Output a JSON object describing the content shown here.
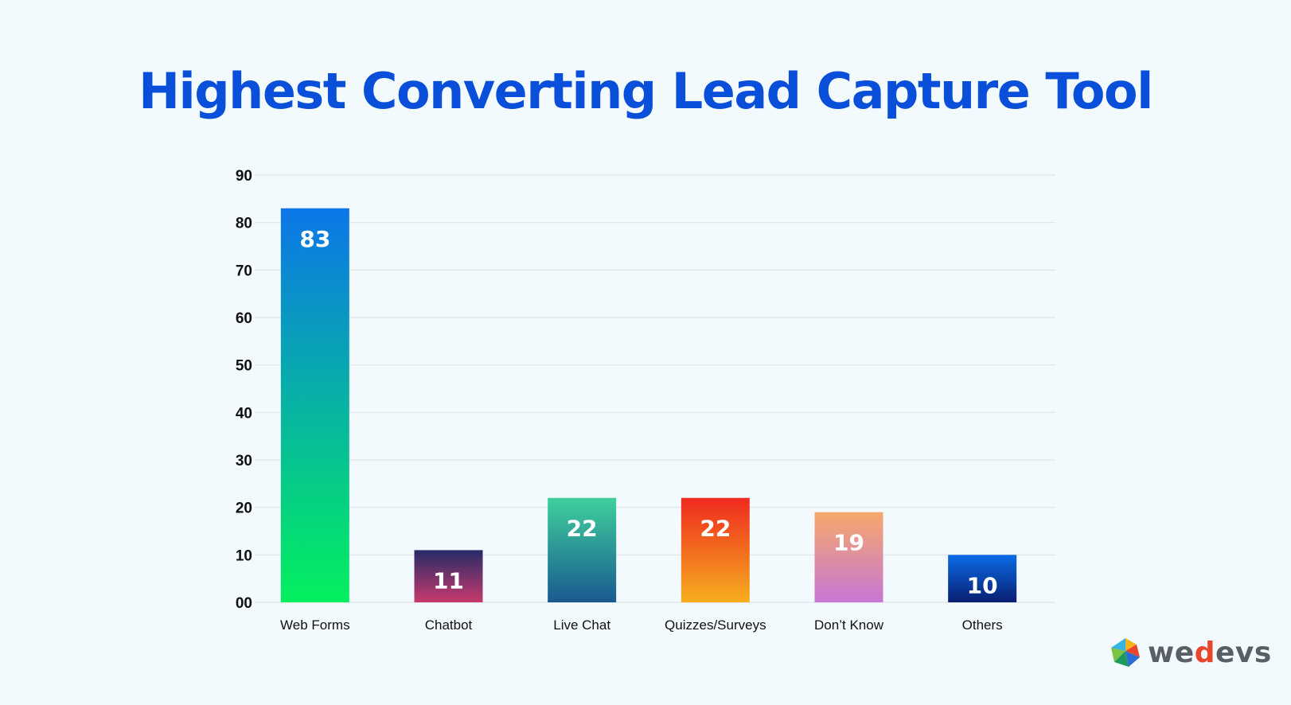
{
  "chart_data": {
    "type": "bar",
    "title": "Highest Converting Lead Capture Tool",
    "categories": [
      "Web Forms",
      "Chatbot",
      "Live Chat",
      "Quizzes/Surveys",
      "Don’t Know",
      "Others"
    ],
    "values": [
      83,
      11,
      22,
      22,
      19,
      10
    ],
    "y_ticks": [
      "00",
      "10",
      "20",
      "30",
      "40",
      "50",
      "60",
      "70",
      "80",
      "90"
    ],
    "ylim": [
      0,
      90
    ],
    "xlabel": "",
    "ylabel": "",
    "grid": true,
    "bar_gradients": [
      [
        "#0c76e8",
        "#03f05e"
      ],
      [
        "#262b67",
        "#c83a6d"
      ],
      [
        "#3fd09c",
        "#195990"
      ],
      [
        "#ef2a1f",
        "#f6ae1f"
      ],
      [
        "#f6a86b",
        "#c777d5"
      ],
      [
        "#0a6be6",
        "#0a1f72"
      ]
    ],
    "title_color": "#0a4fd9",
    "label_color": "#111111",
    "grid_color": "#dde3e8"
  },
  "logo": {
    "name": "wedevs",
    "text_before": "we",
    "text_accent": "d",
    "text_after": "evs"
  }
}
